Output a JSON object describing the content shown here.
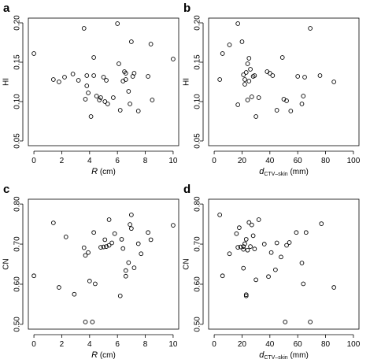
{
  "chart_data": [
    {
      "panel": "a",
      "type": "scatter",
      "xlabel": {
        "main": "R",
        "rest": " (cm)"
      },
      "ylabel": "HI",
      "xlim": [
        0,
        10
      ],
      "ylim": [
        0.05,
        0.2
      ],
      "xticks": [
        0,
        2,
        4,
        6,
        8,
        10
      ],
      "yticks": [
        0.05,
        0.1,
        0.15,
        0.2
      ],
      "xtick_labels": [
        "0",
        "2",
        "4",
        "6",
        "8",
        "10"
      ],
      "ytick_labels": [
        "0.05",
        "0.10",
        "0.15",
        "0.20"
      ],
      "points": [
        [
          0.0,
          0.161
        ],
        [
          1.4,
          0.128
        ],
        [
          1.8,
          0.125
        ],
        [
          2.2,
          0.131
        ],
        [
          2.8,
          0.135
        ],
        [
          3.2,
          0.127
        ],
        [
          3.6,
          0.193
        ],
        [
          3.7,
          0.103
        ],
        [
          3.8,
          0.133
        ],
        [
          3.8,
          0.12
        ],
        [
          3.9,
          0.111
        ],
        [
          4.1,
          0.081
        ],
        [
          4.3,
          0.156
        ],
        [
          4.3,
          0.133
        ],
        [
          4.5,
          0.107
        ],
        [
          4.7,
          0.102
        ],
        [
          4.8,
          0.105
        ],
        [
          5.0,
          0.131
        ],
        [
          5.1,
          0.1
        ],
        [
          5.2,
          0.127
        ],
        [
          5.3,
          0.097
        ],
        [
          5.7,
          0.105
        ],
        [
          6.0,
          0.199
        ],
        [
          6.1,
          0.148
        ],
        [
          6.2,
          0.089
        ],
        [
          6.4,
          0.126
        ],
        [
          6.5,
          0.138
        ],
        [
          6.6,
          0.136
        ],
        [
          6.6,
          0.128
        ],
        [
          6.8,
          0.113
        ],
        [
          6.9,
          0.097
        ],
        [
          7.0,
          0.176
        ],
        [
          7.1,
          0.132
        ],
        [
          7.2,
          0.136
        ],
        [
          7.5,
          0.088
        ],
        [
          8.2,
          0.132
        ],
        [
          8.4,
          0.173
        ],
        [
          8.5,
          0.102
        ],
        [
          10.0,
          0.154
        ]
      ]
    },
    {
      "panel": "b",
      "type": "scatter",
      "xlabel": {
        "main": "d",
        "sub": "CTV–skin",
        "rest": " (mm)"
      },
      "ylabel": "HI",
      "xlim": [
        0,
        100
      ],
      "ylim": [
        0.05,
        0.2
      ],
      "xticks": [
        0,
        20,
        40,
        60,
        80,
        100
      ],
      "yticks": [
        0.05,
        0.1,
        0.15,
        0.2
      ],
      "xtick_labels": [
        "0",
        "20",
        "40",
        "60",
        "80",
        "100"
      ],
      "ytick_labels": [
        "0.05",
        "0.10",
        "0.15",
        "0.20"
      ],
      "points": [
        [
          4,
          0.128
        ],
        [
          6,
          0.161
        ],
        [
          11,
          0.172
        ],
        [
          17,
          0.199
        ],
        [
          17,
          0.096
        ],
        [
          20,
          0.176
        ],
        [
          21,
          0.134
        ],
        [
          22,
          0.128
        ],
        [
          22,
          0.122
        ],
        [
          23,
          0.137
        ],
        [
          24,
          0.148
        ],
        [
          24,
          0.102
        ],
        [
          25,
          0.155
        ],
        [
          25,
          0.126
        ],
        [
          26,
          0.141
        ],
        [
          27,
          0.106
        ],
        [
          28,
          0.132
        ],
        [
          29,
          0.133
        ],
        [
          30,
          0.081
        ],
        [
          32,
          0.105
        ],
        [
          38,
          0.138
        ],
        [
          40,
          0.136
        ],
        [
          42,
          0.133
        ],
        [
          45,
          0.089
        ],
        [
          49,
          0.156
        ],
        [
          50,
          0.103
        ],
        [
          52,
          0.101
        ],
        [
          55,
          0.088
        ],
        [
          60,
          0.132
        ],
        [
          63,
          0.097
        ],
        [
          64,
          0.107
        ],
        [
          65,
          0.131
        ],
        [
          69,
          0.193
        ],
        [
          76,
          0.133
        ],
        [
          86,
          0.125
        ]
      ]
    },
    {
      "panel": "c",
      "type": "scatter",
      "xlabel": {
        "main": "R",
        "rest": " (cm)"
      },
      "ylabel": "CN",
      "xlim": [
        0,
        10
      ],
      "ylim": [
        0.5,
        0.8
      ],
      "xticks": [
        0,
        2,
        4,
        6,
        8,
        10
      ],
      "yticks": [
        0.5,
        0.6,
        0.7,
        0.8
      ],
      "xtick_labels": [
        "0",
        "2",
        "4",
        "6",
        "8",
        "10"
      ],
      "ytick_labels": [
        "0.50",
        "0.60",
        "0.70",
        "0.80"
      ],
      "points": [
        [
          0.0,
          0.621
        ],
        [
          1.4,
          0.753
        ],
        [
          1.8,
          0.592
        ],
        [
          2.3,
          0.718
        ],
        [
          2.9,
          0.575
        ],
        [
          3.6,
          0.691
        ],
        [
          3.7,
          0.672
        ],
        [
          3.7,
          0.506
        ],
        [
          3.9,
          0.679
        ],
        [
          4.0,
          0.608
        ],
        [
          4.2,
          0.506
        ],
        [
          4.3,
          0.729
        ],
        [
          4.4,
          0.601
        ],
        [
          4.8,
          0.692
        ],
        [
          5.0,
          0.693
        ],
        [
          5.1,
          0.711
        ],
        [
          5.2,
          0.694
        ],
        [
          5.4,
          0.697
        ],
        [
          5.4,
          0.761
        ],
        [
          5.6,
          0.703
        ],
        [
          5.8,
          0.726
        ],
        [
          6.2,
          0.571
        ],
        [
          6.3,
          0.712
        ],
        [
          6.4,
          0.689
        ],
        [
          6.6,
          0.634
        ],
        [
          6.6,
          0.62
        ],
        [
          6.8,
          0.654
        ],
        [
          6.9,
          0.749
        ],
        [
          7.0,
          0.773
        ],
        [
          7.0,
          0.739
        ],
        [
          7.2,
          0.641
        ],
        [
          7.5,
          0.701
        ],
        [
          7.7,
          0.676
        ],
        [
          8.2,
          0.729
        ],
        [
          8.4,
          0.711
        ],
        [
          10.0,
          0.747
        ]
      ]
    },
    {
      "panel": "d",
      "type": "scatter",
      "xlabel": {
        "main": "d",
        "sub": "CTV–skin",
        "rest": " (mm)"
      },
      "ylabel": "CN",
      "xlim": [
        0,
        100
      ],
      "ylim": [
        0.5,
        0.8
      ],
      "xticks": [
        0,
        20,
        40,
        60,
        80,
        100
      ],
      "yticks": [
        0.5,
        0.6,
        0.7,
        0.8
      ],
      "xtick_labels": [
        "0",
        "20",
        "40",
        "60",
        "80",
        "100"
      ],
      "ytick_labels": [
        "0.50",
        "0.60",
        "0.70",
        "0.80"
      ],
      "points": [
        [
          4,
          0.773
        ],
        [
          6,
          0.621
        ],
        [
          11,
          0.676
        ],
        [
          16,
          0.726
        ],
        [
          17,
          0.692
        ],
        [
          18,
          0.741
        ],
        [
          19,
          0.693
        ],
        [
          21,
          0.687
        ],
        [
          21,
          0.64
        ],
        [
          21,
          0.694
        ],
        [
          22,
          0.701
        ],
        [
          23,
          0.574
        ],
        [
          23,
          0.571
        ],
        [
          23,
          0.712
        ],
        [
          24,
          0.685
        ],
        [
          25,
          0.754
        ],
        [
          26,
          0.694
        ],
        [
          27,
          0.748
        ],
        [
          28,
          0.721
        ],
        [
          29,
          0.688
        ],
        [
          30,
          0.611
        ],
        [
          32,
          0.761
        ],
        [
          36,
          0.7
        ],
        [
          39,
          0.619
        ],
        [
          41,
          0.679
        ],
        [
          44,
          0.636
        ],
        [
          45,
          0.703
        ],
        [
          48,
          0.668
        ],
        [
          51,
          0.506
        ],
        [
          52,
          0.697
        ],
        [
          54,
          0.704
        ],
        [
          59,
          0.729
        ],
        [
          63,
          0.653
        ],
        [
          64,
          0.601
        ],
        [
          66,
          0.729
        ],
        [
          69,
          0.506
        ],
        [
          77,
          0.751
        ],
        [
          86,
          0.592
        ]
      ]
    }
  ]
}
